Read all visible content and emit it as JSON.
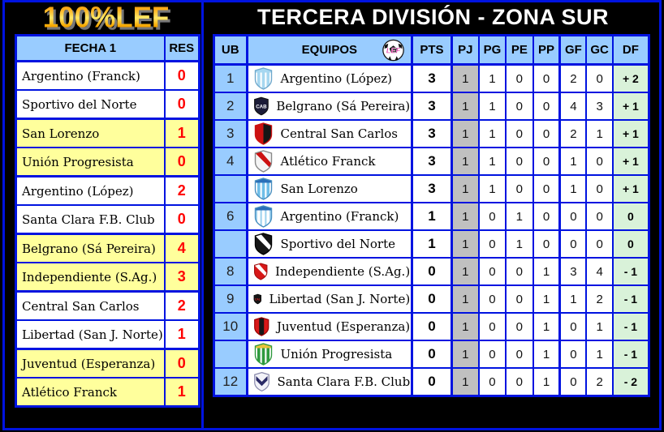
{
  "branding": {
    "logo_text": "100%LEF",
    "logo_gradient": [
      "#E88800",
      "#FFE96A",
      "#D97800"
    ]
  },
  "title": "TERCERA DIVISIÓN - ZONA SUR",
  "colors": {
    "border_blue": "#0013E0",
    "header_bg": "#99CCFF",
    "row_highlight_yellow": "#FFFF9C",
    "pj_column_bg": "#C0C0C0",
    "df_column_bg": "#D9F2D9",
    "score_red": "#FF0000",
    "title_color": "#FFFFFF",
    "background": "#000000"
  },
  "results_panel": {
    "headers": {
      "fecha": "FECHA 1",
      "res": "RES"
    },
    "matches": [
      {
        "highlight": false,
        "rows": [
          {
            "team": "Argentino (Franck)",
            "score": "0"
          },
          {
            "team": "Sportivo del Norte",
            "score": "0"
          }
        ]
      },
      {
        "highlight": true,
        "rows": [
          {
            "team": "San Lorenzo",
            "score": "1"
          },
          {
            "team": "Unión Progresista",
            "score": "0"
          }
        ]
      },
      {
        "highlight": false,
        "rows": [
          {
            "team": "Argentino (López)",
            "score": "2"
          },
          {
            "team": "Santa Clara F.B. Club",
            "score": "0"
          }
        ]
      },
      {
        "highlight": true,
        "rows": [
          {
            "team": "Belgrano (Sá Pereira)",
            "score": "4"
          },
          {
            "team": "Independiente (S.Ag.)",
            "score": "3"
          }
        ]
      },
      {
        "highlight": false,
        "rows": [
          {
            "team": "Central San Carlos",
            "score": "2"
          },
          {
            "team": "Libertad (San J. Norte)",
            "score": "1"
          }
        ]
      },
      {
        "highlight": true,
        "rows": [
          {
            "team": "Juventud (Esperanza)",
            "score": "0"
          },
          {
            "team": "Atlético Franck",
            "score": "1"
          }
        ]
      }
    ]
  },
  "standings_panel": {
    "headers": [
      "UB",
      "EQUIPOS",
      "PTS",
      "PJ",
      "PG",
      "PE",
      "PP",
      "GF",
      "GC",
      "DF"
    ],
    "ball_icon_text": "LEF",
    "rows": [
      {
        "pos": "1",
        "team": "Argentino (López)",
        "pts": "3",
        "pj": "1",
        "pg": "1",
        "pe": "0",
        "pp": "0",
        "gf": "2",
        "gc": "0",
        "df": "+ 2",
        "crest": {
          "variant": "stripes",
          "c1": "#FFFFFF",
          "c2": "#A6D7F0",
          "top": "#A6D7F0",
          "outline": "#6FA8CC"
        }
      },
      {
        "pos": "2",
        "team": "Belgrano (Sá Pereira)",
        "pts": "3",
        "pj": "1",
        "pg": "1",
        "pe": "0",
        "pp": "0",
        "gf": "4",
        "gc": "3",
        "df": "+ 1",
        "crest": {
          "variant": "plain",
          "c1": "#1C1C38",
          "c2": "#FFFFFF",
          "letter": "CAB",
          "outline": "#111"
        }
      },
      {
        "pos": "3",
        "team": "Central San Carlos",
        "pts": "3",
        "pj": "1",
        "pg": "1",
        "pe": "0",
        "pp": "0",
        "gf": "2",
        "gc": "1",
        "df": "+ 1",
        "crest": {
          "variant": "half",
          "c1": "#CC1111",
          "c2": "#161616",
          "outline": "#CC1111"
        }
      },
      {
        "pos": "4",
        "team": "Atlético Franck",
        "pts": "3",
        "pj": "1",
        "pg": "1",
        "pe": "0",
        "pp": "0",
        "gf": "1",
        "gc": "0",
        "df": "+ 1",
        "crest": {
          "variant": "diagonal",
          "c1": "#F4F4F4",
          "c2": "#CC1111",
          "outline": "#888"
        }
      },
      {
        "pos": "",
        "team": "San Lorenzo",
        "pts": "3",
        "pj": "1",
        "pg": "1",
        "pe": "0",
        "pp": "0",
        "gf": "1",
        "gc": "0",
        "df": "+ 1",
        "crest": {
          "variant": "stripes",
          "c1": "#FFFFFF",
          "c2": "#6FBEE8",
          "top": "#2A6FB8",
          "outline": "#4A90C0"
        }
      },
      {
        "pos": "6",
        "team": "Argentino (Franck)",
        "pts": "1",
        "pj": "1",
        "pg": "0",
        "pe": "1",
        "pp": "0",
        "gf": "0",
        "gc": "0",
        "df": "0",
        "crest": {
          "variant": "stripes",
          "c1": "#9ED2EE",
          "c2": "#FFFFFF",
          "top": "#2A6FB8",
          "outline": "#4A90C0"
        }
      },
      {
        "pos": "",
        "team": "Sportivo del Norte",
        "pts": "1",
        "pj": "1",
        "pg": "0",
        "pe": "1",
        "pp": "0",
        "gf": "0",
        "gc": "0",
        "df": "0",
        "crest": {
          "variant": "diagonal",
          "c1": "#161616",
          "c2": "#FFFFFF",
          "outline": "#000"
        }
      },
      {
        "pos": "8",
        "team": "Independiente (S.Ag.)",
        "pts": "0",
        "pj": "1",
        "pg": "0",
        "pe": "0",
        "pp": "1",
        "gf": "3",
        "gc": "4",
        "df": "- 1",
        "crest": {
          "variant": "diagonal",
          "c1": "#D81818",
          "c2": "#FFFFFF",
          "outline": "#A01010"
        }
      },
      {
        "pos": "9",
        "team": "Libertad (San J. Norte)",
        "pts": "0",
        "pj": "1",
        "pg": "0",
        "pe": "0",
        "pp": "1",
        "gf": "1",
        "gc": "2",
        "df": "- 1",
        "crest": {
          "variant": "plain",
          "c1": "#161616",
          "c2": "#DD2222",
          "letter": "CAL",
          "outline": "#000"
        }
      },
      {
        "pos": "10",
        "team": "Juventud (Esperanza)",
        "pts": "0",
        "pj": "1",
        "pg": "0",
        "pe": "0",
        "pp": "1",
        "gf": "0",
        "gc": "1",
        "df": "- 1",
        "crest": {
          "variant": "bandv",
          "c1": "#D81818",
          "c2": "#161616",
          "outline": "#900"
        }
      },
      {
        "pos": "",
        "team": "Unión Progresista",
        "pts": "0",
        "pj": "1",
        "pg": "0",
        "pe": "0",
        "pp": "1",
        "gf": "0",
        "gc": "1",
        "df": "- 1",
        "crest": {
          "variant": "stripes",
          "c1": "#FFFFFF",
          "c2": "#2F9A3F",
          "top": "#E8C23A",
          "outline": "#2F9A3F"
        }
      },
      {
        "pos": "12",
        "team": "Santa Clara F.B. Club",
        "pts": "0",
        "pj": "1",
        "pg": "0",
        "pe": "0",
        "pp": "1",
        "gf": "0",
        "gc": "2",
        "df": "- 2",
        "crest": {
          "variant": "vee",
          "c1": "#F2F2F8",
          "c2": "#2A2A66",
          "outline": "#8888AA"
        }
      }
    ]
  }
}
